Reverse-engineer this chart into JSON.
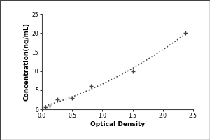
{
  "x_data": [
    0.063,
    0.125,
    0.25,
    0.5,
    0.813,
    1.5,
    2.375
  ],
  "y_data": [
    0.5,
    1.0,
    2.5,
    3.0,
    6.0,
    10.0,
    20.0
  ],
  "xlabel": "Optical Density",
  "ylabel": "Concentration(ng/mL)",
  "xlim": [
    0,
    2.5
  ],
  "ylim": [
    0,
    25
  ],
  "xticks": [
    0,
    0.5,
    1.0,
    1.5,
    2.0,
    2.5
  ],
  "yticks": [
    0,
    5,
    10,
    15,
    20,
    25
  ],
  "line_color": "#444444",
  "marker_style": "+",
  "marker_size": 5,
  "marker_color": "#444444",
  "line_style": ":",
  "line_width": 1.2,
  "bg_color": "#e8e8e0",
  "plot_bg_color": "#ffffff",
  "tick_fontsize": 5.5,
  "label_fontsize": 6.5,
  "box_color": "#ffffff"
}
